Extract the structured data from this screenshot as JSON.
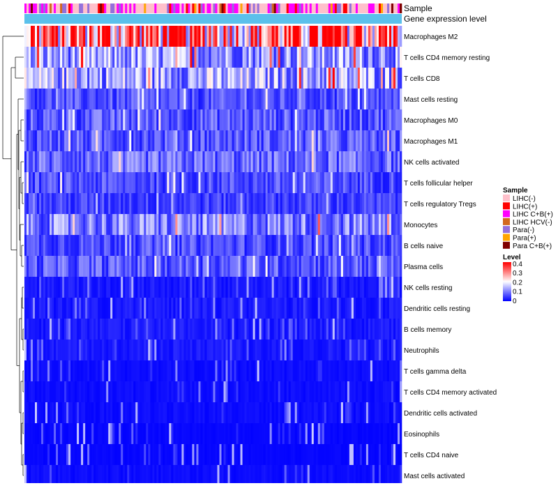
{
  "chart_data": {
    "type": "heatmap",
    "title": "",
    "annotation_tracks": [
      "Sample",
      "Gene expression level"
    ],
    "rows": [
      "Macrophages M2",
      "T cells CD4 memory resting",
      "T cells CD8",
      "Mast cells resting",
      "Macrophages M0",
      "Macrophages M1",
      "NK cells activated",
      "T cells follicular helper",
      "T cells regulatory  Tregs",
      "Monocytes",
      "B cells naive",
      "Plasma cells",
      "NK cells resting",
      "Dendritic cells resting",
      "B cells memory",
      "Neutrophils",
      "T cells gamma delta",
      "T cells CD4 memory activated",
      "Dendritic cells activated",
      "Eosinophils",
      "T cells CD4 naive",
      "Mast cells activated"
    ],
    "row_mean_level": [
      0.3,
      0.12,
      0.13,
      0.06,
      0.07,
      0.07,
      0.08,
      0.06,
      0.05,
      0.1,
      0.06,
      0.07,
      0.02,
      0.02,
      0.02,
      0.02,
      0.01,
      0.01,
      0.01,
      0.005,
      0.005,
      0.01
    ],
    "column_count": 180,
    "legend_sample": {
      "title": "Sample",
      "entries": [
        {
          "label": "LIHC(-)",
          "color": "#FFC0CB"
        },
        {
          "label": "LIHC(+)",
          "color": "#FF0000"
        },
        {
          "label": "LIHC C+B(+)",
          "color": "#FF00FF"
        },
        {
          "label": "LIHC HCV(-)",
          "color": "#D2691E"
        },
        {
          "label": "Para(-)",
          "color": "#9370DB"
        },
        {
          "label": "Para(+)",
          "color": "#FFA500"
        },
        {
          "label": "Para C+B(+)",
          "color": "#800000"
        }
      ]
    },
    "legend_level": {
      "title": "Level",
      "range": [
        0,
        0.4
      ],
      "ticks": [
        "0.4",
        "0.3",
        "0.2",
        "0.1",
        "0"
      ],
      "colors": [
        "#0000FF",
        "#FFFFFF",
        "#FF0000"
      ]
    },
    "expression_bar_color": "#5BC0EB"
  }
}
